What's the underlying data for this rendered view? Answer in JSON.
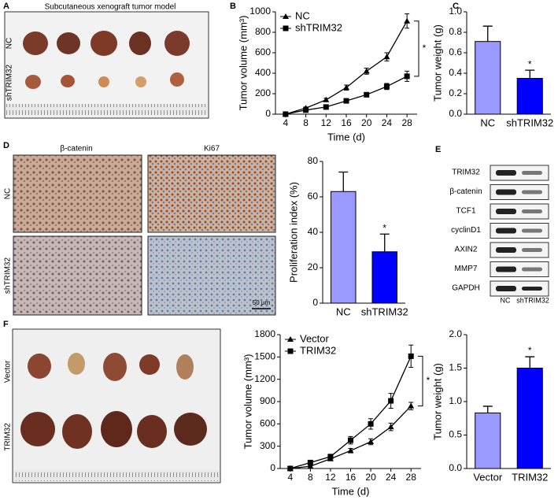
{
  "labels": [
    "A",
    "B",
    "C",
    "D",
    "E",
    "F"
  ],
  "panel_a": {
    "title": "Subcutaneous xenograft tumor model",
    "rows": [
      "NC",
      "shTRIM32"
    ]
  },
  "panel_d": {
    "columns": [
      "β-catenin",
      "Ki67"
    ],
    "rows": [
      "NC",
      "shTRIM32"
    ],
    "scale_bar": "50 μm"
  },
  "panel_e": {
    "proteins": [
      "TRIM32",
      "β-catenin",
      "TCF1",
      "cyclinD1",
      "AXIN2",
      "MMP7",
      "GAPDH"
    ],
    "columns": [
      "NC",
      "shTRIM32"
    ]
  },
  "panel_f": {
    "rows": [
      "Vector",
      "TRIM32"
    ]
  },
  "chart_data": [
    {
      "type": "line",
      "ylabel": "Tumor volume (mm³)",
      "xlabel": "Time (d)",
      "annotation": "*",
      "legend": "upper left",
      "x": [
        4,
        8,
        12,
        16,
        20,
        24,
        28
      ],
      "xlim": [
        2,
        30
      ],
      "xticks": [
        4,
        8,
        12,
        16,
        20,
        24,
        28
      ],
      "ylim": [
        0,
        1000
      ],
      "yticks": [
        0,
        200,
        400,
        600,
        800,
        1000
      ],
      "series": [
        {
          "name": "NC",
          "color": "#000000",
          "marker": "triangle",
          "values": [
            0,
            60,
            140,
            260,
            420,
            560,
            910
          ],
          "errors": [
            0,
            10,
            15,
            25,
            30,
            40,
            70
          ]
        },
        {
          "name": "shTRIM32",
          "color": "#000000",
          "marker": "square",
          "values": [
            0,
            40,
            70,
            130,
            190,
            270,
            370
          ],
          "errors": [
            0,
            8,
            10,
            15,
            20,
            30,
            50
          ]
        }
      ]
    },
    {
      "type": "bar",
      "ylabel": "Tumor weight (g)",
      "annotation": "*",
      "categories": [
        "NC",
        "shTRIM32"
      ],
      "values": [
        0.71,
        0.35
      ],
      "errors": [
        0.15,
        0.08
      ],
      "colors": [
        "#9999ff",
        "#0000ff"
      ],
      "ylim": [
        0,
        1
      ],
      "yticks": [
        {
          "value": 0,
          "label": "0.0"
        },
        0.2,
        0.4,
        0.6,
        0.8,
        {
          "value": 1,
          "label": "1.0"
        }
      ]
    },
    {
      "type": "bar",
      "ylabel": "Proliferation index (%)",
      "annotation": "*",
      "categories": [
        "NC",
        "shTRIM32"
      ],
      "values": [
        63,
        29
      ],
      "errors": [
        11,
        10
      ],
      "colors": [
        "#9999ff",
        "#0000ff"
      ],
      "ylim": [
        0,
        80
      ],
      "yticks": [
        0,
        20,
        40,
        60,
        80
      ]
    },
    {
      "type": "line",
      "ylabel": "Tumor volume (mm³)",
      "xlabel": "Time (d)",
      "annotation": "*",
      "legend": "upper left",
      "x": [
        4,
        8,
        12,
        16,
        20,
        24,
        28
      ],
      "xlim": [
        2,
        30
      ],
      "xticks": [
        4,
        8,
        12,
        16,
        20,
        24,
        28
      ],
      "ylim": [
        0,
        1800
      ],
      "yticks": [
        0,
        300,
        600,
        900,
        1200,
        1500,
        1800
      ],
      "series": [
        {
          "name": "Vector",
          "color": "#000000",
          "marker": "triangle",
          "values": [
            0,
            30,
            130,
            240,
            360,
            560,
            840
          ],
          "errors": [
            0,
            10,
            20,
            30,
            40,
            50,
            50
          ]
        },
        {
          "name": "TRIM32",
          "color": "#000000",
          "marker": "square",
          "values": [
            0,
            80,
            160,
            380,
            600,
            910,
            1510
          ],
          "errors": [
            0,
            15,
            25,
            50,
            70,
            100,
            150
          ]
        }
      ]
    },
    {
      "type": "bar",
      "ylabel": "Tumor weight (g)",
      "annotation": "*",
      "categories": [
        "Vector",
        "TRIM32"
      ],
      "values": [
        0.83,
        1.5
      ],
      "errors": [
        0.1,
        0.17
      ],
      "colors": [
        "#9999ff",
        "#0000ff"
      ],
      "ylim": [
        0,
        2
      ],
      "yticks": [
        {
          "value": 0,
          "label": "0.0"
        },
        0.5,
        {
          "value": 1,
          "label": "1.0"
        },
        1.5,
        {
          "value": 2,
          "label": "2.0"
        }
      ]
    }
  ]
}
